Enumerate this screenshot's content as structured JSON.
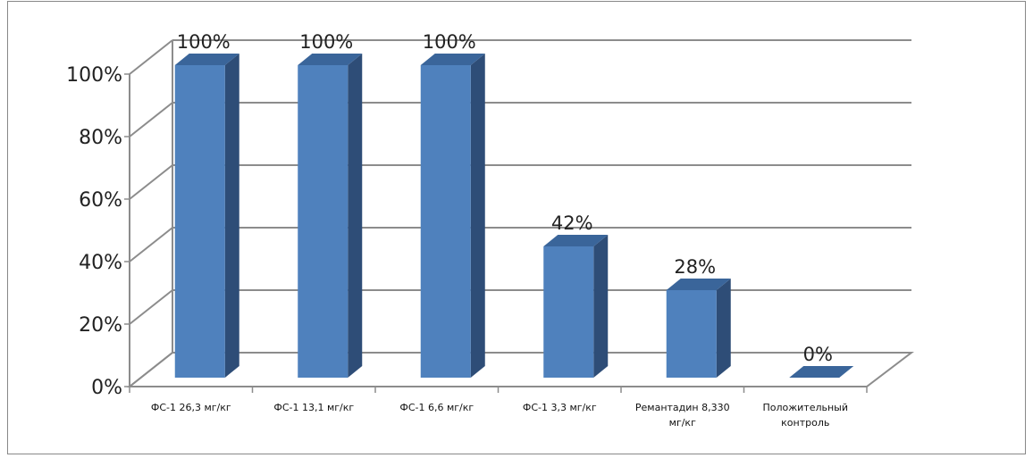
{
  "chart_data": {
    "type": "bar",
    "bar_style": "3d-column",
    "categories": [
      [
        "ФС-1 26,3 мг/кг"
      ],
      [
        "ФС-1 13,1 мг/кг"
      ],
      [
        "ФС-1 6,6 мг/кг"
      ],
      [
        "ФС-1 3,3 мг/кг"
      ],
      [
        "Ремантадин 8,330",
        "мг/кг"
      ],
      [
        "Положительный",
        "контроль"
      ]
    ],
    "values": [
      100,
      100,
      100,
      42,
      28,
      0
    ],
    "data_labels": [
      "100%",
      "100%",
      "100%",
      "42%",
      "28%",
      "0%"
    ],
    "ylim": [
      0,
      100
    ],
    "yticks": [
      0,
      20,
      40,
      60,
      80,
      100
    ],
    "ytick_labels": [
      "0%",
      "20%",
      "40%",
      "60%",
      "80%",
      "100%"
    ],
    "grid": true,
    "legend": "none",
    "colors": {
      "bar_front": "#4F81BD",
      "bar_side": "#2E4D77",
      "bar_top": "#3A659A",
      "grid": "#8C8C8C",
      "text": "#222222"
    }
  }
}
